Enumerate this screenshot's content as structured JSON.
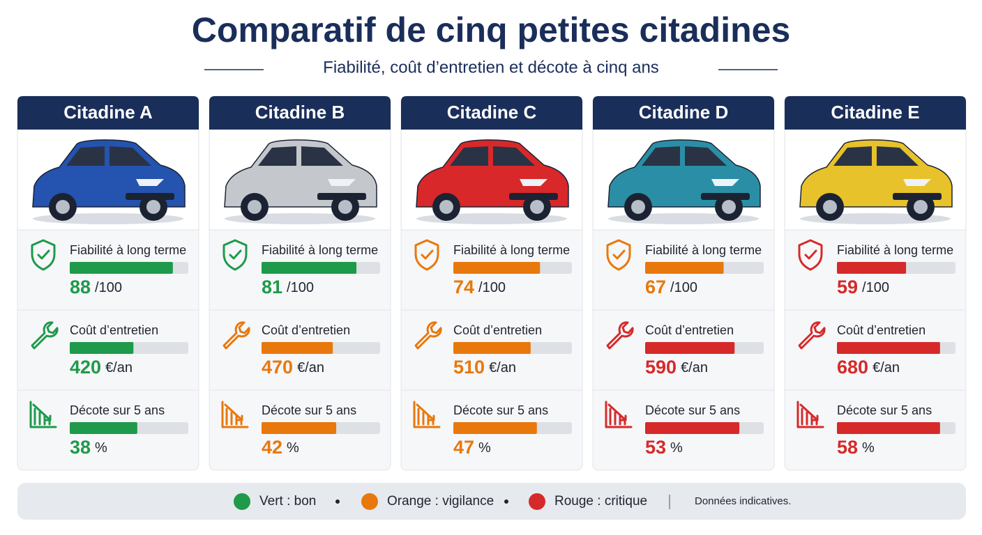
{
  "header": {
    "title": "Comparatif de cinq petites citadines",
    "subtitle": "Fiabilité, coût d’entretien et décote à cinq ans"
  },
  "cards": [
    {
      "name": "Citadine A",
      "car_color": "#2553b0",
      "metrics": [
        {
          "label": "Fiabilité à long terme",
          "value": 88,
          "unit": "/100",
          "color": "#1e9a4a"
        },
        {
          "label": "Coût d’entretien",
          "value": 420,
          "unit": "€/an",
          "color": "#1e9a4a"
        },
        {
          "label": "Décote sur 5 ans",
          "value": 38,
          "unit": "%",
          "color": "#1e9a4a"
        }
      ]
    },
    {
      "name": "Citadine B",
      "car_color": "#c4c8cc",
      "metrics": [
        {
          "label": "Fiabilité à long terme",
          "value": 81,
          "unit": "/100",
          "color": "#1e9a4a"
        },
        {
          "label": "Coût d’entretien",
          "value": 470,
          "unit": "€/an",
          "color": "#e8780c"
        },
        {
          "label": "Décote sur 5 ans",
          "value": 42,
          "unit": "%",
          "color": "#e8780c"
        }
      ]
    },
    {
      "name": "Citadine C",
      "car_color": "#d8282a",
      "metrics": [
        {
          "label": "Fiabilité à long terme",
          "value": 74,
          "unit": "/100",
          "color": "#e8780c"
        },
        {
          "label": "Coût d’entretien",
          "value": 510,
          "unit": "€/an",
          "color": "#e8780c"
        },
        {
          "label": "Décote sur 5 ans",
          "value": 47,
          "unit": "%",
          "color": "#e8780c"
        }
      ]
    },
    {
      "name": "Citadine D",
      "car_color": "#2a8fa6",
      "metrics": [
        {
          "label": "Fiabilité à long terme",
          "value": 67,
          "unit": "/100",
          "color": "#e8780c"
        },
        {
          "label": "Coût d’entretien",
          "value": 590,
          "unit": "€/an",
          "color": "#d62a2a"
        },
        {
          "label": "Décote sur 5 ans",
          "value": 53,
          "unit": "%",
          "color": "#d62a2a"
        }
      ]
    },
    {
      "name": "Citadine E",
      "car_color": "#e8c22a",
      "metrics": [
        {
          "label": "Fiabilité à long terme",
          "value": 59,
          "unit": "/100",
          "color": "#d62a2a"
        },
        {
          "label": "Coût d’entretien",
          "value": 680,
          "unit": "€/an",
          "color": "#d62a2a"
        },
        {
          "label": "Décote sur 5 ans",
          "value": 58,
          "unit": "%",
          "color": "#d62a2a"
        }
      ]
    }
  ],
  "legend": {
    "items": [
      {
        "label": "Vert : bon",
        "color": "#1e9a4a"
      },
      {
        "label": "Orange : vigilance",
        "color": "#e8780c"
      },
      {
        "label": "Rouge : critique",
        "color": "#d62a2a"
      }
    ],
    "note": "Données indicatives."
  }
}
